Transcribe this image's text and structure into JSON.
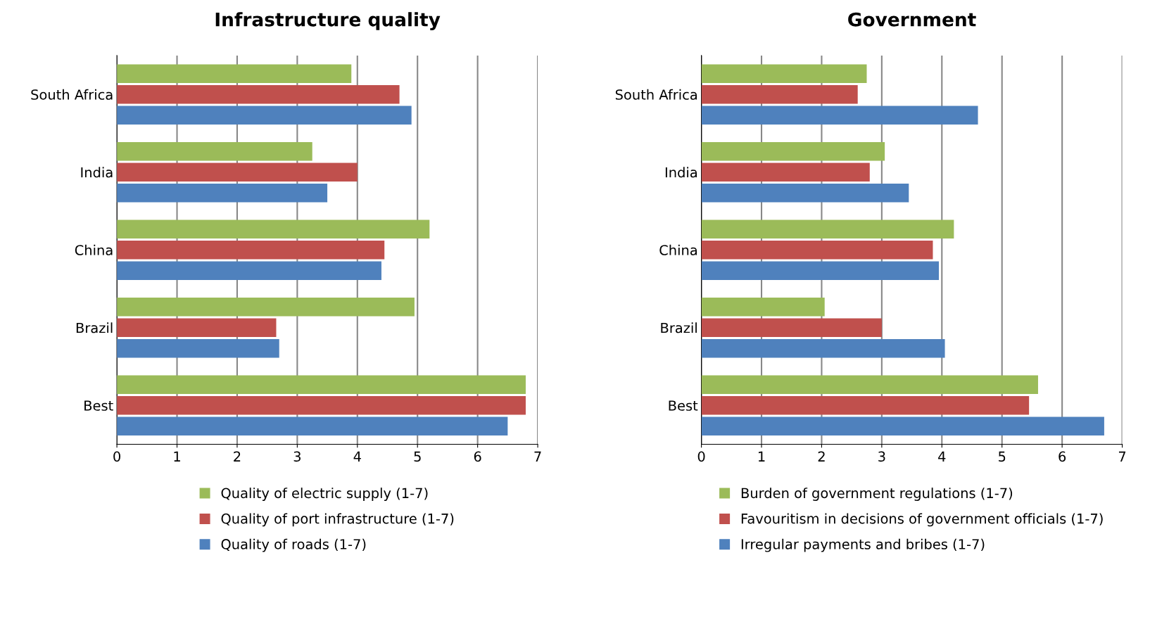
{
  "chart_data": [
    {
      "type": "bar",
      "orientation": "horizontal",
      "title": "Infrastructure quality",
      "categories": [
        "South Africa",
        "India",
        "China",
        "Brazil",
        "Best"
      ],
      "xlim": [
        0,
        7
      ],
      "xticks": [
        0,
        1,
        2,
        3,
        4,
        5,
        6,
        7
      ],
      "grid": "x",
      "legend": "bottom",
      "series": [
        {
          "name": "Quality of electric supply (1-7)",
          "color": "#9bbb59",
          "values": [
            3.9,
            3.25,
            5.2,
            4.95,
            6.8
          ]
        },
        {
          "name": "Quality of port infrastructure (1-7)",
          "color": "#c0504d",
          "values": [
            4.7,
            4.0,
            4.45,
            2.65,
            6.8
          ]
        },
        {
          "name": "Quality of roads (1-7)",
          "color": "#4f81bd",
          "values": [
            4.9,
            3.5,
            4.4,
            2.7,
            6.5
          ]
        }
      ]
    },
    {
      "type": "bar",
      "orientation": "horizontal",
      "title": "Government",
      "categories": [
        "South Africa",
        "India",
        "China",
        "Brazil",
        "Best"
      ],
      "xlim": [
        0,
        7
      ],
      "xticks": [
        0,
        1,
        2,
        3,
        4,
        5,
        6,
        7
      ],
      "grid": "x",
      "legend": "bottom",
      "series": [
        {
          "name": "Burden of government regulations (1-7)",
          "color": "#9bbb59",
          "values": [
            2.75,
            3.05,
            4.2,
            2.05,
            5.6
          ]
        },
        {
          "name": "Favouritism in decisions of government officials (1-7)",
          "color": "#c0504d",
          "values": [
            2.6,
            2.8,
            3.85,
            3.0,
            5.45
          ]
        },
        {
          "name": "Irregular payments and bribes (1-7)",
          "color": "#4f81bd",
          "values": [
            4.6,
            3.45,
            3.95,
            4.05,
            6.7
          ]
        }
      ]
    }
  ]
}
